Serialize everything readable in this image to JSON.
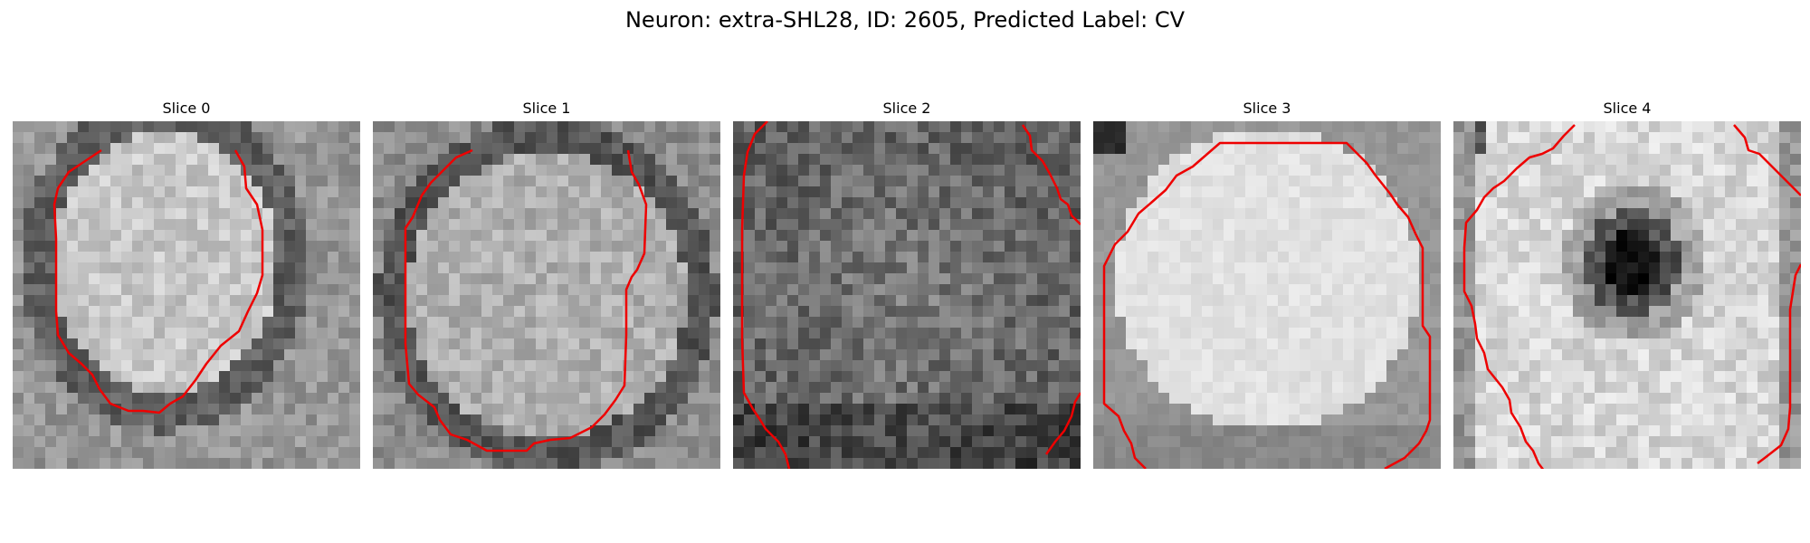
{
  "figure": {
    "title": "Neuron: extra-SHL28, ID: 2605, Predicted Label: CV"
  },
  "slices": [
    {
      "label": "Slice 0",
      "seed": 11,
      "tone": "bright_cell_dark_rim",
      "outline_color": "#ee0000"
    },
    {
      "label": "Slice 1",
      "seed": 23,
      "tone": "mid_cell_dark_rim",
      "outline_color": "#ee0000"
    },
    {
      "label": "Slice 2",
      "seed": 37,
      "tone": "dark_noisy",
      "outline_color": "#ee0000"
    },
    {
      "label": "Slice 3",
      "seed": 41,
      "tone": "bright_smooth",
      "outline_color": "#ee0000"
    },
    {
      "label": "Slice 4",
      "seed": 53,
      "tone": "bright_with_dark_spot",
      "outline_color": "#ee0000"
    }
  ]
}
